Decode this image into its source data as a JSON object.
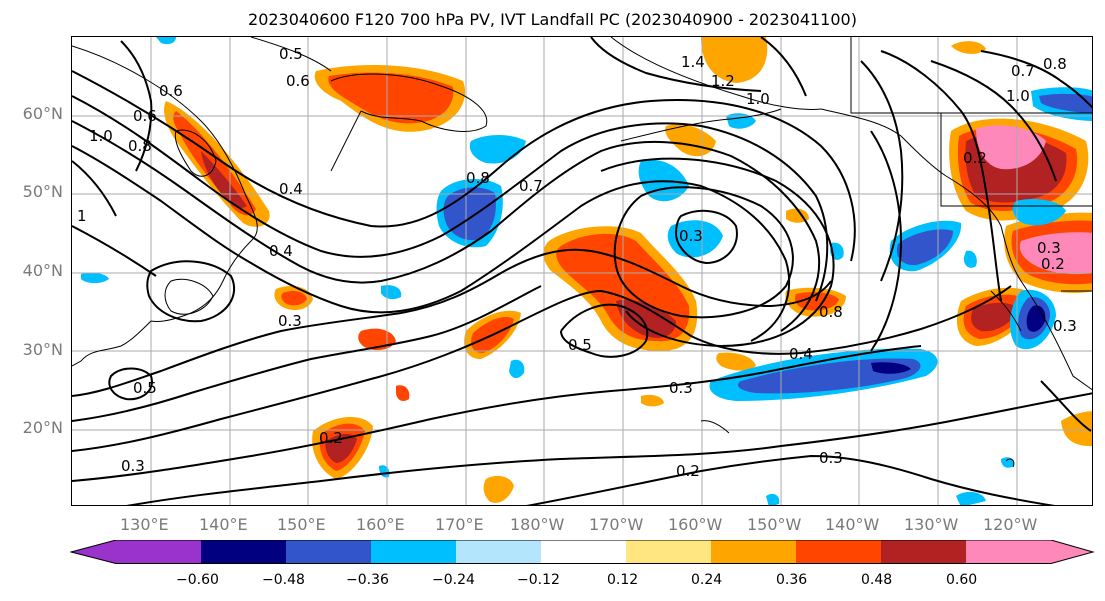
{
  "title": "2023040600 F120 700 hPa PV, IVT Landfall PC (2023040900 - 2023041100)",
  "lat_labels": [
    "60°N",
    "50°N",
    "40°N",
    "30°N",
    "20°N"
  ],
  "lon_labels": [
    "130°E",
    "140°E",
    "150°E",
    "160°E",
    "170°E",
    "180°W",
    "170°W",
    "160°W",
    "150°W",
    "140°W",
    "130°W",
    "120°W"
  ],
  "colorbar": {
    "colors": [
      "#9933cc",
      "#000080",
      "#3355cc",
      "#00bfff",
      "#b3e5fc",
      "#ffffff",
      "#ffe680",
      "#ffa500",
      "#ff4500",
      "#b22222",
      "#ff88bb"
    ],
    "tick_labels": [
      "−0.60",
      "−0.48",
      "−0.36",
      "−0.24",
      "−0.12",
      "0.12",
      "0.24",
      "0.36",
      "0.48",
      "0.60"
    ]
  },
  "contour_labels": [
    "0.5",
    "0.6",
    "0.6",
    "0.6",
    "0.8",
    "1.0",
    "1.4",
    "1.2",
    "1.0",
    "0.4",
    "0.4",
    "0.3",
    "0.8",
    "0.7",
    "0.3",
    "0.5",
    "0.8",
    "0.4",
    "0.3",
    "0.2",
    "0.3",
    "0.5",
    "0.2",
    "0.3",
    "0.7",
    "0.8",
    "1.0",
    "0.2",
    "0.3",
    "0.2",
    "0.3",
    "1"
  ],
  "shading_colors": {
    "yellow": "#ffe680",
    "orange": "#ffa500",
    "red_orange": "#ff4500",
    "dark_red": "#b22222",
    "pink": "#ff88bb",
    "light_blue": "#b3e5fc",
    "cyan": "#00bfff",
    "blue": "#3355cc",
    "navy": "#000080"
  }
}
